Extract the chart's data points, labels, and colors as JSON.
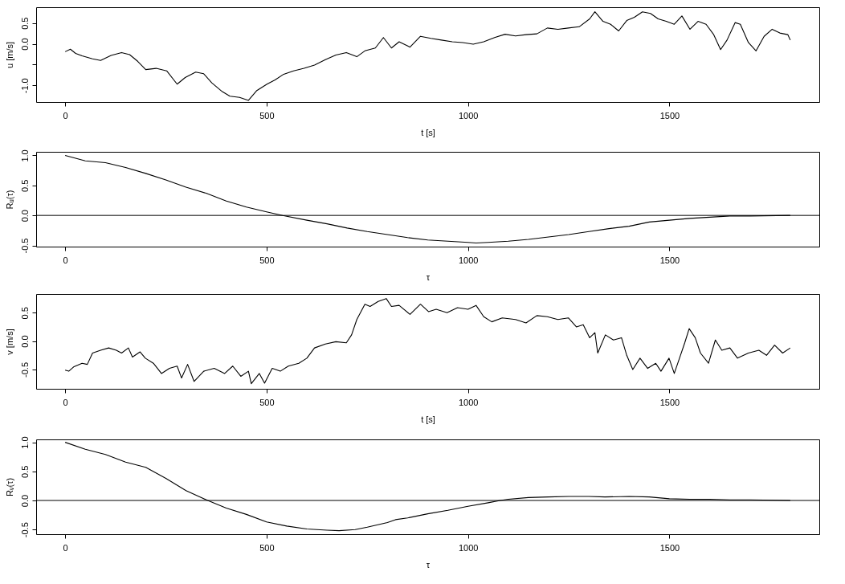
{
  "chart_data": [
    {
      "type": "line",
      "xlabel": "t [s]",
      "ylabel": "u [m/s]",
      "xlim": [
        -72,
        1872
      ],
      "ylim": [
        -1.4,
        0.88
      ],
      "xticks": [
        0,
        500,
        1000,
        1500
      ],
      "yticks": [
        {
          "value": -1.0,
          "label": "-1.0"
        },
        {
          "value": -0.5,
          "label": null
        },
        {
          "value": 0.0,
          "label": "0.0"
        },
        {
          "value": 0.5,
          "label": "0.5"
        }
      ],
      "grid": false,
      "x": [
        0,
        13,
        26,
        42,
        68,
        88,
        114,
        140,
        160,
        180,
        200,
        226,
        252,
        278,
        298,
        324,
        344,
        364,
        390,
        409,
        433,
        455,
        475,
        501,
        521,
        541,
        567,
        593,
        619,
        646,
        672,
        698,
        724,
        744,
        770,
        790,
        810,
        829,
        856,
        882,
        908,
        934,
        961,
        987,
        1013,
        1039,
        1066,
        1092,
        1118,
        1144,
        1171,
        1197,
        1223,
        1249,
        1276,
        1302,
        1315,
        1335,
        1354,
        1374,
        1394,
        1413,
        1433,
        1453,
        1472,
        1492,
        1512,
        1531,
        1551,
        1571,
        1591,
        1610,
        1627,
        1643,
        1663,
        1676,
        1696,
        1715,
        1735,
        1755,
        1774,
        1794,
        1800
      ],
      "series": [
        {
          "color": "#000000",
          "values": [
            -0.19,
            -0.13,
            -0.23,
            -0.29,
            -0.36,
            -0.4,
            -0.28,
            -0.21,
            -0.26,
            -0.42,
            -0.62,
            -0.59,
            -0.65,
            -0.97,
            -0.81,
            -0.68,
            -0.72,
            -0.94,
            -1.15,
            -1.26,
            -1.29,
            -1.36,
            -1.13,
            -0.97,
            -0.87,
            -0.74,
            -0.65,
            -0.59,
            -0.51,
            -0.38,
            -0.27,
            -0.21,
            -0.31,
            -0.17,
            -0.1,
            0.15,
            -0.1,
            0.05,
            -0.08,
            0.18,
            0.13,
            0.09,
            0.05,
            0.03,
            -0.01,
            0.05,
            0.15,
            0.23,
            0.19,
            0.22,
            0.24,
            0.38,
            0.35,
            0.38,
            0.41,
            0.6,
            0.77,
            0.54,
            0.47,
            0.31,
            0.56,
            0.64,
            0.77,
            0.73,
            0.6,
            0.54,
            0.47,
            0.67,
            0.35,
            0.54,
            0.47,
            0.22,
            -0.14,
            0.09,
            0.51,
            0.47,
            0.03,
            -0.17,
            0.18,
            0.35,
            0.26,
            0.22,
            0.09
          ]
        }
      ]
    },
    {
      "type": "line",
      "xlabel": "τ",
      "ylabel": "Rᵤ(τ)",
      "xlim": [
        -72,
        1872
      ],
      "ylim": [
        -0.52,
        1.06
      ],
      "xticks": [
        0,
        500,
        1000,
        1500
      ],
      "yticks": [
        {
          "value": -0.5,
          "label": "-0.5"
        },
        {
          "value": 0.0,
          "label": "0.0"
        },
        {
          "value": 0.5,
          "label": "0.5"
        },
        {
          "value": 1.0,
          "label": "1.0"
        }
      ],
      "grid": false,
      "ref_lines": [
        {
          "axis": "y",
          "value": 0
        }
      ],
      "x": [
        0,
        50,
        100,
        150,
        200,
        250,
        300,
        350,
        400,
        450,
        500,
        540,
        600,
        650,
        700,
        750,
        800,
        850,
        900,
        950,
        1000,
        1020,
        1050,
        1100,
        1150,
        1200,
        1250,
        1300,
        1350,
        1400,
        1450,
        1500,
        1550,
        1600,
        1650,
        1700,
        1800
      ],
      "series": [
        {
          "color": "#000000",
          "values": [
            1.0,
            0.91,
            0.88,
            0.8,
            0.7,
            0.59,
            0.47,
            0.37,
            0.24,
            0.14,
            0.06,
            0.0,
            -0.08,
            -0.14,
            -0.21,
            -0.27,
            -0.32,
            -0.37,
            -0.41,
            -0.43,
            -0.45,
            -0.46,
            -0.45,
            -0.43,
            -0.4,
            -0.36,
            -0.32,
            -0.27,
            -0.22,
            -0.18,
            -0.11,
            -0.08,
            -0.05,
            -0.03,
            -0.01,
            -0.01,
            0.0
          ]
        }
      ]
    },
    {
      "type": "line",
      "xlabel": "t [s]",
      "ylabel": "v [m/s]",
      "xlim": [
        -72,
        1872
      ],
      "ylim": [
        -0.84,
        0.83
      ],
      "xticks": [
        0,
        500,
        1000,
        1500
      ],
      "yticks": [
        {
          "value": -0.5,
          "label": "-0.5"
        },
        {
          "value": 0.0,
          "label": "0.0"
        },
        {
          "value": 0.5,
          "label": "0.5"
        }
      ],
      "grid": false,
      "x": [
        0,
        9,
        22,
        42,
        55,
        68,
        88,
        108,
        127,
        140,
        157,
        167,
        186,
        199,
        219,
        239,
        259,
        278,
        289,
        304,
        320,
        344,
        370,
        396,
        416,
        436,
        455,
        462,
        482,
        495,
        514,
        534,
        554,
        580,
        600,
        619,
        646,
        672,
        698,
        711,
        724,
        744,
        757,
        777,
        797,
        810,
        829,
        856,
        882,
        902,
        921,
        948,
        974,
        1000,
        1020,
        1039,
        1059,
        1085,
        1118,
        1144,
        1171,
        1197,
        1223,
        1249,
        1269,
        1286,
        1302,
        1315,
        1322,
        1341,
        1361,
        1381,
        1394,
        1409,
        1427,
        1446,
        1466,
        1479,
        1499,
        1512,
        1525,
        1538,
        1549,
        1564,
        1577,
        1597,
        1614,
        1630,
        1650,
        1669,
        1696,
        1722,
        1741,
        1761,
        1781,
        1800
      ],
      "series": [
        {
          "color": "#000000",
          "values": [
            -0.51,
            -0.53,
            -0.45,
            -0.39,
            -0.41,
            -0.21,
            -0.16,
            -0.12,
            -0.16,
            -0.21,
            -0.12,
            -0.28,
            -0.19,
            -0.3,
            -0.39,
            -0.57,
            -0.48,
            -0.44,
            -0.65,
            -0.41,
            -0.71,
            -0.53,
            -0.48,
            -0.57,
            -0.44,
            -0.62,
            -0.53,
            -0.75,
            -0.57,
            -0.74,
            -0.48,
            -0.53,
            -0.44,
            -0.39,
            -0.3,
            -0.12,
            -0.05,
            -0.01,
            -0.03,
            0.11,
            0.38,
            0.65,
            0.61,
            0.7,
            0.75,
            0.61,
            0.63,
            0.47,
            0.65,
            0.52,
            0.56,
            0.5,
            0.59,
            0.56,
            0.63,
            0.43,
            0.34,
            0.41,
            0.38,
            0.32,
            0.45,
            0.43,
            0.38,
            0.41,
            0.25,
            0.29,
            0.06,
            0.15,
            -0.21,
            0.11,
            0.02,
            0.06,
            -0.25,
            -0.5,
            -0.3,
            -0.48,
            -0.39,
            -0.53,
            -0.3,
            -0.57,
            -0.3,
            -0.03,
            0.22,
            0.06,
            -0.21,
            -0.39,
            0.02,
            -0.16,
            -0.12,
            -0.3,
            -0.21,
            -0.16,
            -0.25,
            -0.07,
            -0.21,
            -0.12
          ]
        }
      ]
    },
    {
      "type": "line",
      "xlabel": "τ",
      "ylabel": "Rᵥ(τ)",
      "xlim": [
        -72,
        1872
      ],
      "ylim": [
        -0.58,
        1.05
      ],
      "xticks": [
        0,
        500,
        1000,
        1500
      ],
      "yticks": [
        {
          "value": -0.5,
          "label": "-0.5"
        },
        {
          "value": 0.0,
          "label": "0.0"
        },
        {
          "value": 0.5,
          "label": "0.5"
        },
        {
          "value": 1.0,
          "label": "1.0"
        }
      ],
      "grid": false,
      "ref_lines": [
        {
          "axis": "y",
          "value": 0
        }
      ],
      "x": [
        0,
        50,
        100,
        150,
        200,
        250,
        300,
        354,
        400,
        450,
        500,
        550,
        600,
        650,
        680,
        720,
        750,
        800,
        820,
        850,
        900,
        950,
        1000,
        1050,
        1080,
        1100,
        1150,
        1200,
        1250,
        1300,
        1340,
        1400,
        1450,
        1500,
        1550,
        1600,
        1650,
        1700,
        1800
      ],
      "series": [
        {
          "color": "#000000",
          "values": [
            1.0,
            0.88,
            0.79,
            0.66,
            0.57,
            0.38,
            0.17,
            0.0,
            -0.13,
            -0.24,
            -0.37,
            -0.44,
            -0.49,
            -0.51,
            -0.52,
            -0.5,
            -0.46,
            -0.38,
            -0.33,
            -0.3,
            -0.23,
            -0.17,
            -0.1,
            -0.04,
            0.0,
            0.02,
            0.05,
            0.06,
            0.07,
            0.07,
            0.06,
            0.07,
            0.06,
            0.03,
            0.02,
            0.02,
            0.01,
            0.01,
            0.0
          ]
        }
      ]
    }
  ]
}
